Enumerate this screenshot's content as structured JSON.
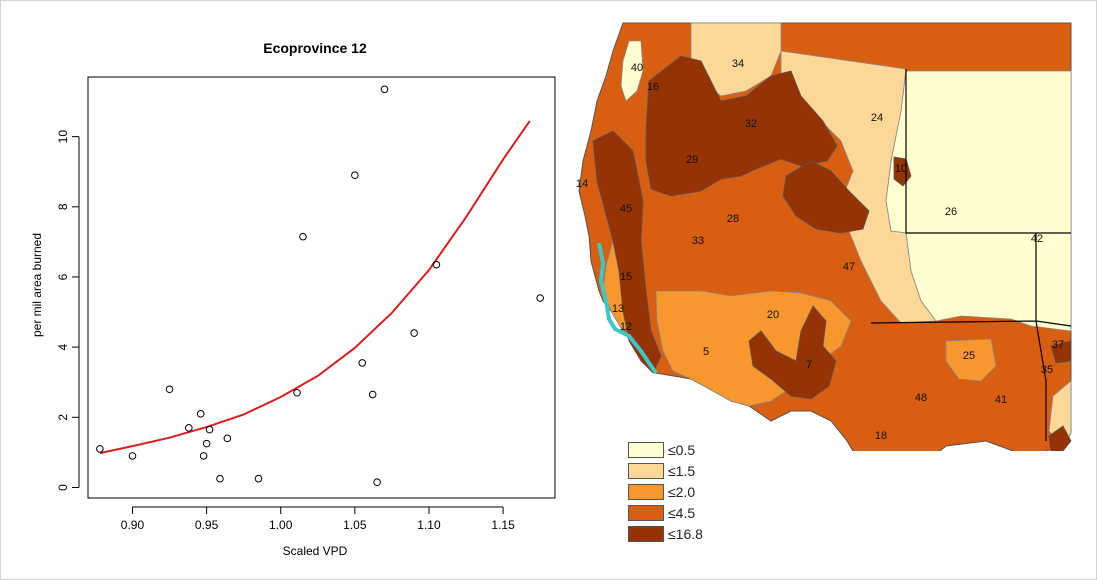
{
  "chart_data": [
    {
      "type": "scatter",
      "title": "Ecoprovince 12",
      "xlabel": "Scaled VPD",
      "ylabel": "per mil area burned",
      "xlim": [
        0.87,
        1.185
      ],
      "ylim": [
        -0.3,
        11.7
      ],
      "xticks": [
        "0.90",
        "0.95",
        "1.00",
        "1.05",
        "1.10",
        "1.15"
      ],
      "yticks": [
        "0",
        "2",
        "4",
        "6",
        "8",
        "10"
      ],
      "grid": false,
      "points": [
        {
          "x": 0.878,
          "y": 1.1
        },
        {
          "x": 0.9,
          "y": 0.9
        },
        {
          "x": 0.925,
          "y": 2.8
        },
        {
          "x": 0.938,
          "y": 1.7
        },
        {
          "x": 0.946,
          "y": 2.1
        },
        {
          "x": 0.948,
          "y": 0.9
        },
        {
          "x": 0.95,
          "y": 1.25
        },
        {
          "x": 0.952,
          "y": 1.65
        },
        {
          "x": 0.959,
          "y": 0.25
        },
        {
          "x": 0.964,
          "y": 1.4
        },
        {
          "x": 0.985,
          "y": 0.25
        },
        {
          "x": 1.011,
          "y": 2.7
        },
        {
          "x": 1.015,
          "y": 7.15
        },
        {
          "x": 1.05,
          "y": 8.9
        },
        {
          "x": 1.055,
          "y": 3.55
        },
        {
          "x": 1.062,
          "y": 2.65
        },
        {
          "x": 1.065,
          "y": 0.15
        },
        {
          "x": 1.07,
          "y": 11.35
        },
        {
          "x": 1.09,
          "y": 4.4
        },
        {
          "x": 1.105,
          "y": 6.35
        },
        {
          "x": 1.175,
          "y": 5.4
        }
      ],
      "fit_curve": {
        "color": "#d81e1e",
        "x": [
          0.878,
          0.9,
          0.925,
          0.95,
          0.975,
          1.0,
          1.025,
          1.05,
          1.075,
          1.1,
          1.125,
          1.15,
          1.168
        ],
        "y": [
          0.98,
          1.18,
          1.42,
          1.72,
          2.08,
          2.58,
          3.18,
          3.98,
          4.98,
          6.2,
          7.7,
          9.35,
          10.45
        ]
      }
    },
    {
      "type": "choropleth",
      "region_labels": [
        "40",
        "34",
        "16",
        "32",
        "24",
        "29",
        "14",
        "10",
        "45",
        "28",
        "26",
        "33",
        "42",
        "47",
        "15",
        "13",
        "20",
        "12",
        "5",
        "7",
        "25",
        "37",
        "35",
        "48",
        "41",
        "18"
      ],
      "legend": [
        {
          "label": "≤0.5",
          "color": "#ffffcf"
        },
        {
          "label": "≤1.5",
          "color": "#fdd798"
        },
        {
          "label": "≤2.0",
          "color": "#f8972d"
        },
        {
          "label": "≤4.5",
          "color": "#d85f12"
        },
        {
          "label": "≤16.8",
          "color": "#963305"
        }
      ],
      "highlight_color": "#3cc8c8"
    }
  ]
}
